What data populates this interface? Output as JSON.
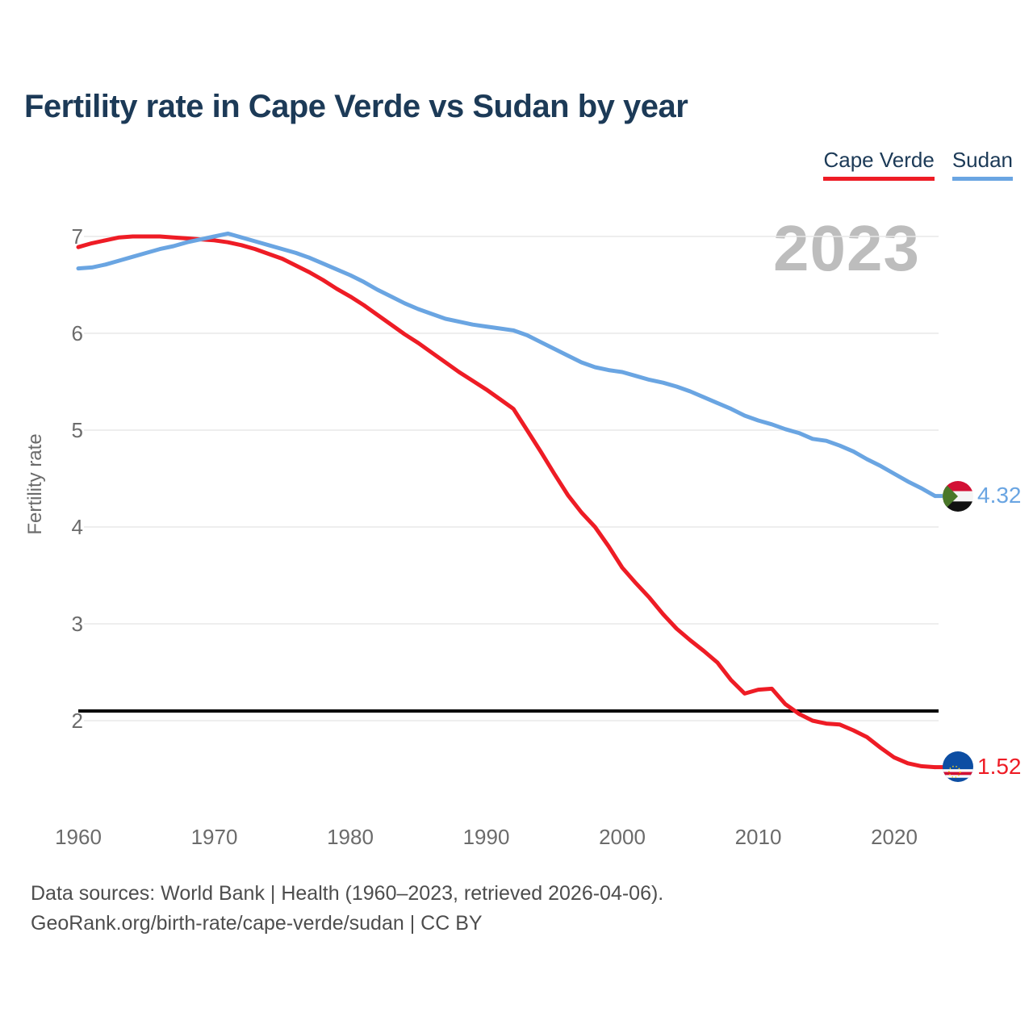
{
  "title": "Fertility rate in Cape Verde vs Sudan by year",
  "legend": [
    {
      "label": "Cape Verde",
      "color": "#ee1c25"
    },
    {
      "label": "Sudan",
      "color": "#6aa5e2"
    }
  ],
  "watermark": "2023",
  "y_axis": {
    "label": "Fertility rate",
    "ticks": [
      7,
      6,
      5,
      4,
      3,
      2
    ]
  },
  "x_axis": {
    "ticks": [
      1960,
      1970,
      1980,
      1990,
      2000,
      2010,
      2020
    ]
  },
  "end_labels": {
    "sudan": {
      "value": "4.32",
      "flag": "sudan-flag"
    },
    "cape_verde": {
      "value": "1.52",
      "flag": "cape-verde-flag"
    }
  },
  "footer": {
    "line1": "Data sources: World Bank | Health (1960–2023, retrieved 2026-04-06).",
    "line2": "GeoRank.org/birth-rate/cape-verde/sudan | CC BY"
  },
  "chart_data": {
    "type": "line",
    "title": "Fertility rate in Cape Verde vs Sudan by year",
    "xlabel": "",
    "ylabel": "Fertility rate",
    "xlim": [
      1960,
      2023
    ],
    "ylim": [
      2,
      7
    ],
    "grid": "horizontal",
    "legend_position": "top-right",
    "annotation": "2023",
    "reference_line": {
      "value": 2.1,
      "color": "#000000",
      "meaning": "replacement fertility level"
    },
    "x": [
      1960,
      1961,
      1962,
      1963,
      1964,
      1965,
      1966,
      1967,
      1968,
      1969,
      1970,
      1971,
      1972,
      1973,
      1974,
      1975,
      1976,
      1977,
      1978,
      1979,
      1980,
      1981,
      1982,
      1983,
      1984,
      1985,
      1986,
      1987,
      1988,
      1989,
      1990,
      1991,
      1992,
      1993,
      1994,
      1995,
      1996,
      1997,
      1998,
      1999,
      2000,
      2001,
      2002,
      2003,
      2004,
      2005,
      2006,
      2007,
      2008,
      2009,
      2010,
      2011,
      2012,
      2013,
      2014,
      2015,
      2016,
      2017,
      2018,
      2019,
      2020,
      2021,
      2022,
      2023
    ],
    "series": [
      {
        "name": "Cape Verde",
        "color": "#ee1c25",
        "end_value": 1.52,
        "values": [
          6.89,
          6.93,
          6.96,
          6.99,
          7.0,
          7.0,
          7.0,
          6.99,
          6.98,
          6.97,
          6.96,
          6.94,
          6.91,
          6.87,
          6.82,
          6.77,
          6.7,
          6.63,
          6.55,
          6.46,
          6.38,
          6.29,
          6.19,
          6.09,
          5.99,
          5.9,
          5.8,
          5.7,
          5.6,
          5.51,
          5.42,
          5.32,
          5.22,
          5.0,
          4.78,
          4.55,
          4.33,
          4.15,
          4.0,
          3.8,
          3.58,
          3.42,
          3.27,
          3.1,
          2.95,
          2.83,
          2.72,
          2.6,
          2.42,
          2.28,
          2.32,
          2.33,
          2.17,
          2.07,
          2.0,
          1.97,
          1.96,
          1.9,
          1.83,
          1.72,
          1.62,
          1.56,
          1.53,
          1.52
        ]
      },
      {
        "name": "Sudan",
        "color": "#6aa5e2",
        "end_value": 4.32,
        "values": [
          6.67,
          6.68,
          6.71,
          6.75,
          6.79,
          6.83,
          6.87,
          6.9,
          6.94,
          6.97,
          7.0,
          7.03,
          6.99,
          6.95,
          6.91,
          6.87,
          6.83,
          6.78,
          6.72,
          6.66,
          6.6,
          6.53,
          6.45,
          6.38,
          6.31,
          6.25,
          6.2,
          6.15,
          6.12,
          6.09,
          6.07,
          6.05,
          6.03,
          5.98,
          5.91,
          5.84,
          5.77,
          5.7,
          5.65,
          5.62,
          5.6,
          5.56,
          5.52,
          5.49,
          5.45,
          5.4,
          5.34,
          5.28,
          5.22,
          5.15,
          5.1,
          5.06,
          5.01,
          4.97,
          4.91,
          4.89,
          4.84,
          4.78,
          4.7,
          4.63,
          4.55,
          4.47,
          4.4,
          4.32
        ]
      }
    ]
  }
}
